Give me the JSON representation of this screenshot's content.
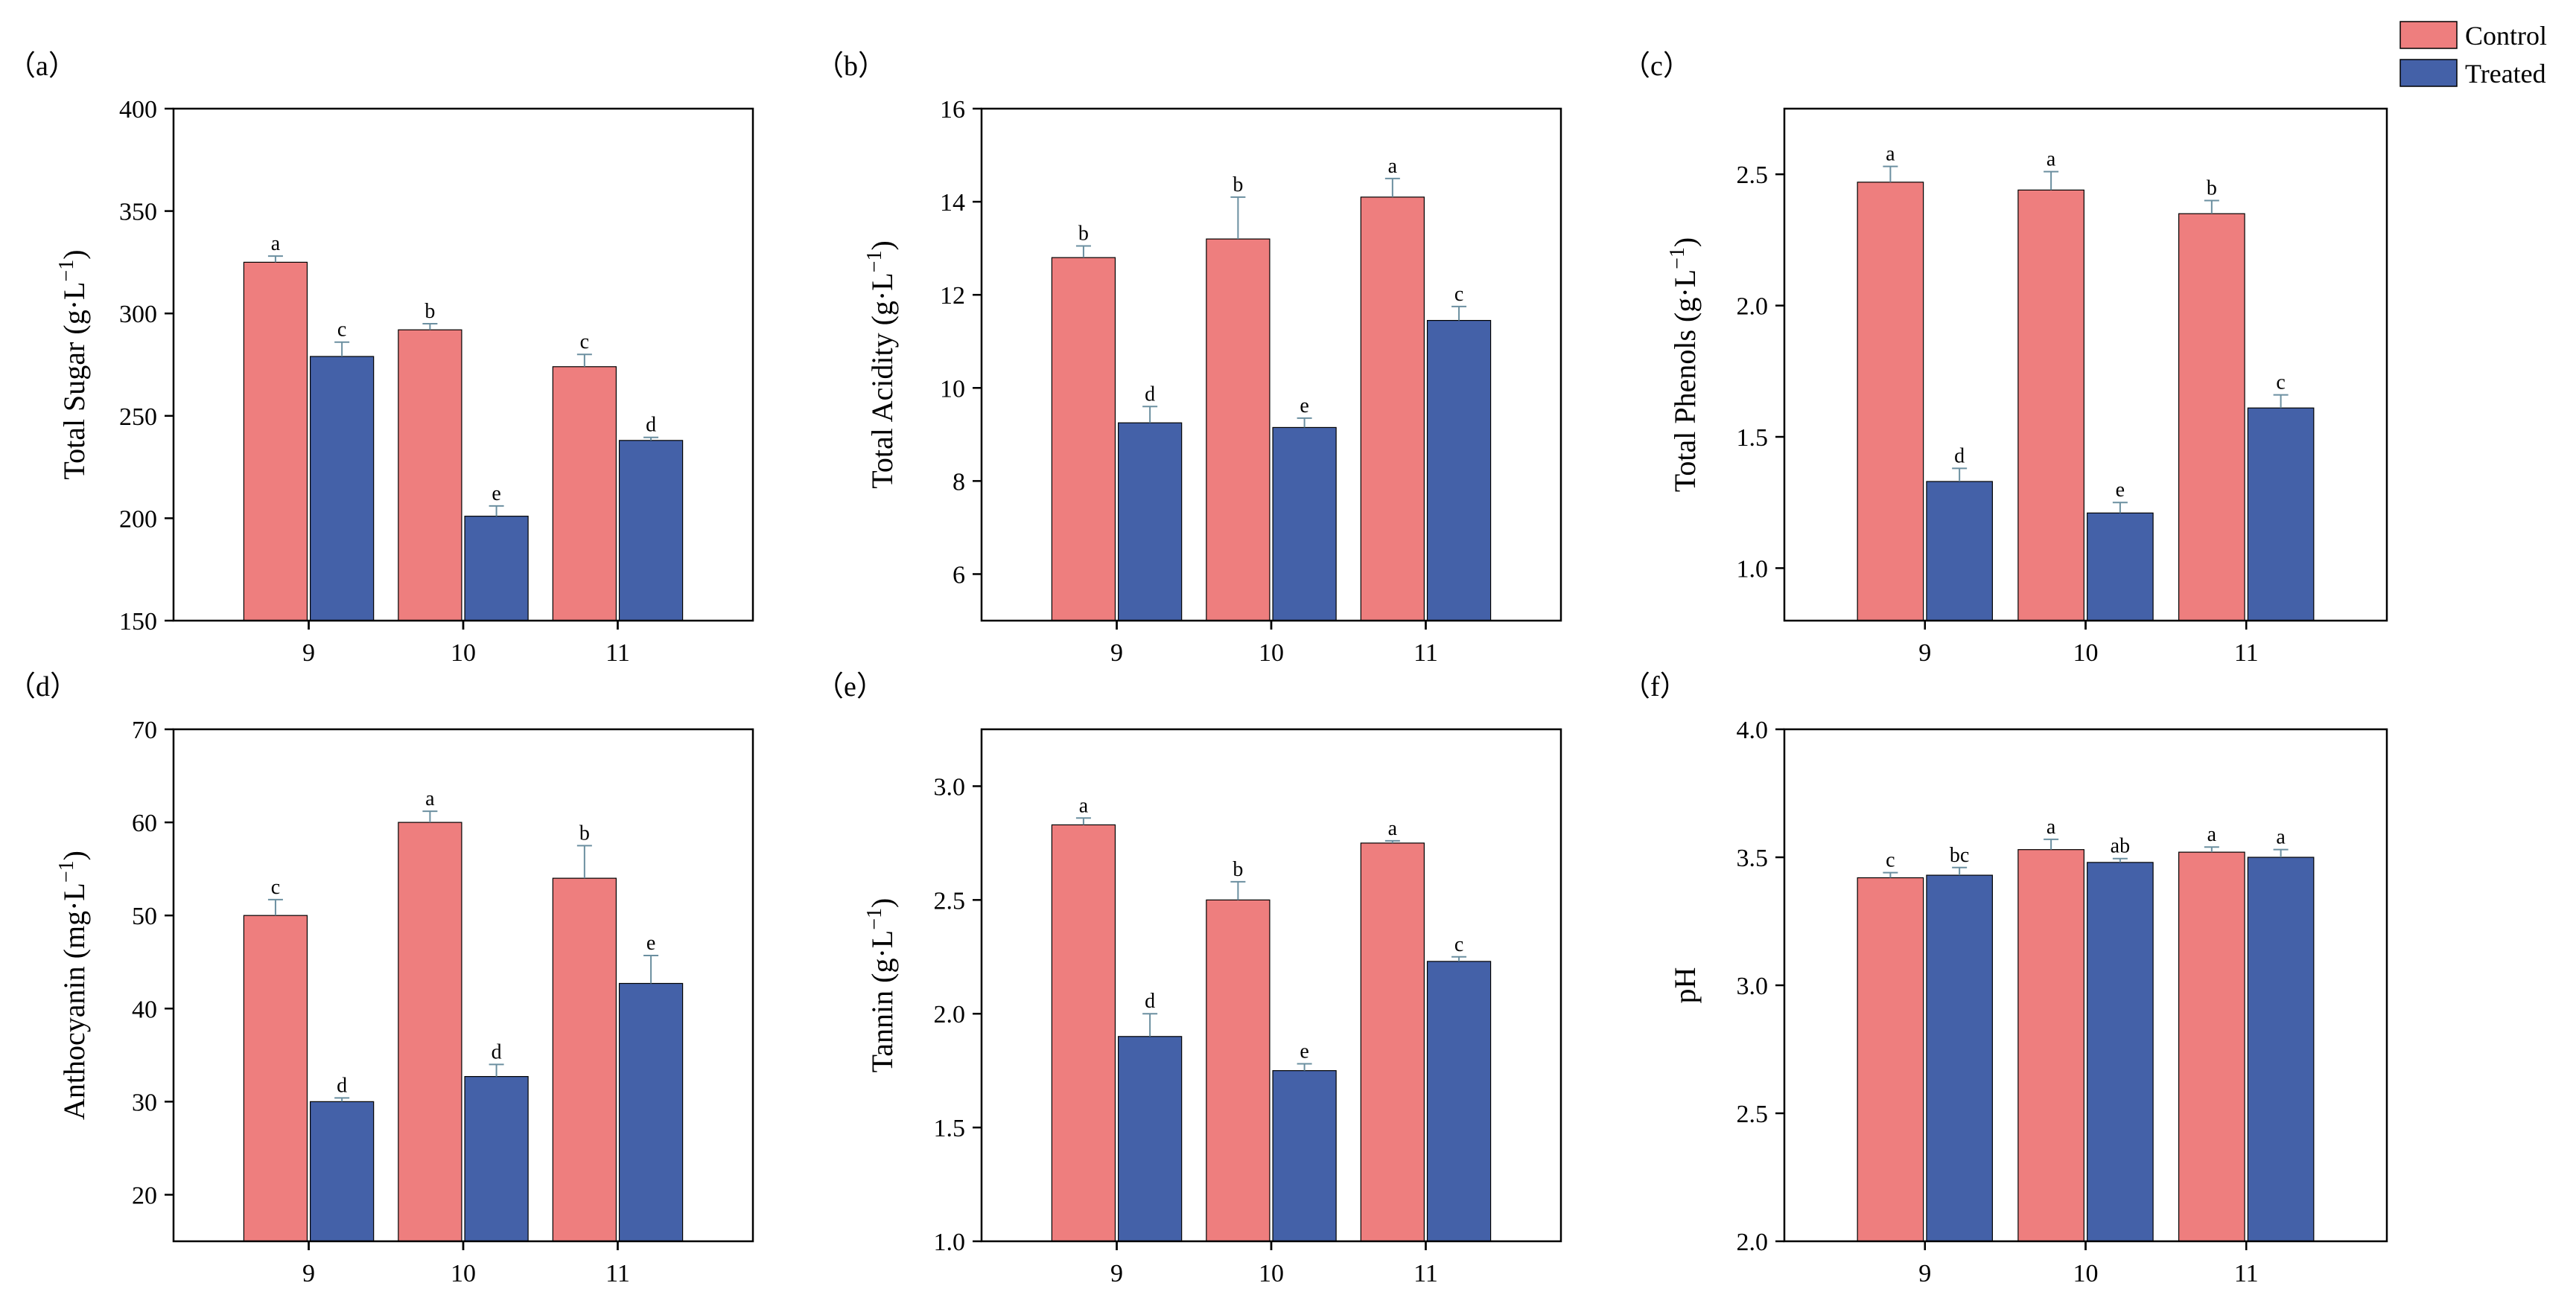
{
  "legend": {
    "position": "top-right",
    "items": [
      {
        "label": "Control",
        "color": "#EE7E7E"
      },
      {
        "label": "Treated",
        "color": "#4461A8"
      }
    ]
  },
  "colors": {
    "control": "#EE7E7E",
    "treated": "#4461A8",
    "error": "#6B8FA0",
    "axis": "#000000"
  },
  "chart_data": [
    {
      "panel": "（a）",
      "type": "bar",
      "ylabel": "Total Sugar (g·L",
      "ylabel_sup": "−1",
      "ylabel_close": ")",
      "categories": [
        "9",
        "10",
        "11"
      ],
      "ylim": [
        150,
        400
      ],
      "yticks": [
        "150",
        "200",
        "250",
        "300",
        "350",
        "400"
      ],
      "series": [
        {
          "name": "Control",
          "values": [
            325,
            292,
            274
          ],
          "errors": [
            3,
            3,
            6
          ],
          "letters": [
            "a",
            "b",
            "c"
          ]
        },
        {
          "name": "Treated",
          "values": [
            279,
            201,
            238
          ],
          "errors": [
            7,
            5,
            1.5
          ],
          "letters": [
            "c",
            "e",
            "d"
          ]
        }
      ]
    },
    {
      "panel": "（b）",
      "type": "bar",
      "ylabel": "Total Acidity (g·L",
      "ylabel_sup": "−1",
      "ylabel_close": ")",
      "categories": [
        "9",
        "10",
        "11"
      ],
      "ylim": [
        5,
        16
      ],
      "yticks": [
        "6",
        "8",
        "10",
        "12",
        "14",
        "16"
      ],
      "series": [
        {
          "name": "Control",
          "values": [
            12.8,
            13.2,
            14.1
          ],
          "errors": [
            0.25,
            0.9,
            0.4
          ],
          "letters": [
            "b",
            "b",
            "a"
          ]
        },
        {
          "name": "Treated",
          "values": [
            9.25,
            9.15,
            11.45
          ],
          "errors": [
            0.35,
            0.2,
            0.3
          ],
          "letters": [
            "d",
            "e",
            "c"
          ]
        }
      ]
    },
    {
      "panel": "（c）",
      "type": "bar",
      "ylabel": "Total Phenols (g·L",
      "ylabel_sup": "−1",
      "ylabel_close": ")",
      "categories": [
        "9",
        "10",
        "11"
      ],
      "ylim": [
        0.8,
        2.75
      ],
      "yticks": [
        "1.0",
        "1.5",
        "2.0",
        "2.5"
      ],
      "series": [
        {
          "name": "Control",
          "values": [
            2.47,
            2.44,
            2.35
          ],
          "errors": [
            0.06,
            0.07,
            0.05
          ],
          "letters": [
            "a",
            "a",
            "b"
          ]
        },
        {
          "name": "Treated",
          "values": [
            1.33,
            1.21,
            1.61
          ],
          "errors": [
            0.05,
            0.04,
            0.05
          ],
          "letters": [
            "d",
            "e",
            "c"
          ]
        }
      ]
    },
    {
      "panel": "（d）",
      "type": "bar",
      "ylabel": "Anthocyanin (mg·L",
      "ylabel_sup": "−1",
      "ylabel_close": ")",
      "categories": [
        "9",
        "10",
        "11"
      ],
      "ylim": [
        15,
        70
      ],
      "yticks": [
        "20",
        "30",
        "40",
        "50",
        "60",
        "70"
      ],
      "series": [
        {
          "name": "Control",
          "values": [
            50,
            60,
            54
          ],
          "errors": [
            1.7,
            1.2,
            3.5
          ],
          "letters": [
            "c",
            "a",
            "b"
          ]
        },
        {
          "name": "Treated",
          "values": [
            30,
            32.7,
            42.7
          ],
          "errors": [
            0.4,
            1.3,
            3
          ],
          "letters": [
            "d",
            "d",
            "e"
          ]
        }
      ]
    },
    {
      "panel": "（e）",
      "type": "bar",
      "ylabel": "Tannin (g·L",
      "ylabel_sup": "−1",
      "ylabel_close": ")",
      "categories": [
        "9",
        "10",
        "11"
      ],
      "ylim": [
        1.0,
        3.25
      ],
      "yticks": [
        "1.0",
        "1.5",
        "2.0",
        "2.5",
        "3.0"
      ],
      "series": [
        {
          "name": "Control",
          "values": [
            2.83,
            2.5,
            2.75
          ],
          "errors": [
            0.03,
            0.08,
            0.01
          ],
          "letters": [
            "a",
            "b",
            "a"
          ]
        },
        {
          "name": "Treated",
          "values": [
            1.9,
            1.75,
            2.23
          ],
          "errors": [
            0.1,
            0.03,
            0.02
          ],
          "letters": [
            "d",
            "e",
            "c"
          ]
        }
      ]
    },
    {
      "panel": "（f）",
      "type": "bar",
      "ylabel": "pH",
      "ylabel_sup": "",
      "ylabel_close": "",
      "categories": [
        "9",
        "10",
        "11"
      ],
      "ylim": [
        2.0,
        4.0
      ],
      "yticks": [
        "2.0",
        "2.5",
        "3.0",
        "3.5",
        "4.0"
      ],
      "series": [
        {
          "name": "Control",
          "values": [
            3.42,
            3.53,
            3.52
          ],
          "errors": [
            0.02,
            0.04,
            0.02
          ],
          "letters": [
            "c",
            "a",
            "a"
          ]
        },
        {
          "name": "Treated",
          "values": [
            3.43,
            3.48,
            3.5
          ],
          "errors": [
            0.03,
            0.015,
            0.03
          ],
          "letters": [
            "bc",
            "ab",
            "a"
          ]
        }
      ]
    }
  ]
}
